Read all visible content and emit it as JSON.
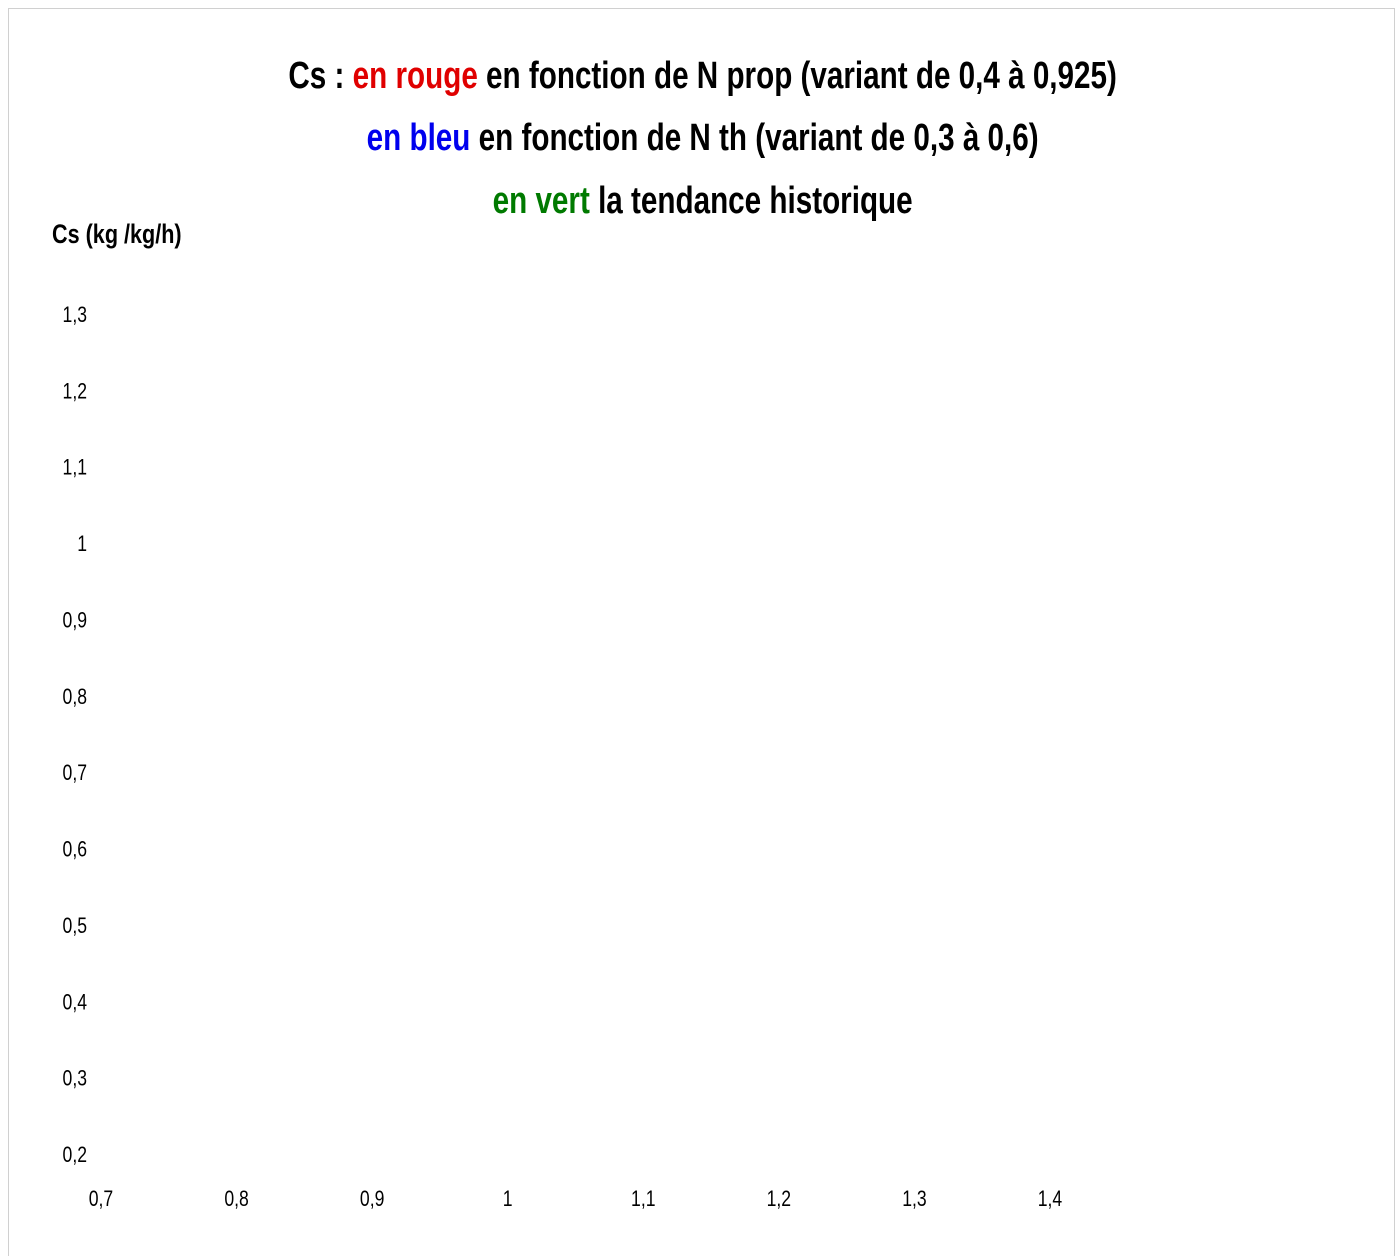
{
  "chart_data": {
    "type": "line",
    "title": {
      "line1": [
        {
          "text": "Cs : ",
          "color": "#000000"
        },
        {
          "text": "en rouge",
          "color": "#e00000"
        },
        {
          "text": " en fonction de N prop (variant de 0,4 à 0,925)",
          "color": "#000000"
        }
      ],
      "line2": [
        {
          "text": "en bleu",
          "color": "#0000ee"
        },
        {
          "text": " en fonction de N th (variant de 0,3 à 0,6)",
          "color": "#000000"
        }
      ],
      "line3": [
        {
          "text": "en vert",
          "color": "#007a00"
        },
        {
          "text": " la tendance historique",
          "color": "#000000"
        }
      ]
    },
    "ylabel": "Cs (kg /kg/h)",
    "xlabel": "",
    "xlim": [
      0.7,
      1.4
    ],
    "ylim": [
      0.2,
      1.3
    ],
    "x_ticks": [
      "0,7",
      "0,8",
      "0,9",
      "1",
      "1,1",
      "1,2",
      "1,3",
      "1,4"
    ],
    "y_ticks": [
      "1,3",
      "1,2",
      "1,1",
      "1",
      "0,9",
      "0,8",
      "0,7",
      "0,6",
      "0,5",
      "0,4",
      "0,3",
      "0,2"
    ],
    "series": [],
    "grid": false,
    "legend": "none"
  }
}
